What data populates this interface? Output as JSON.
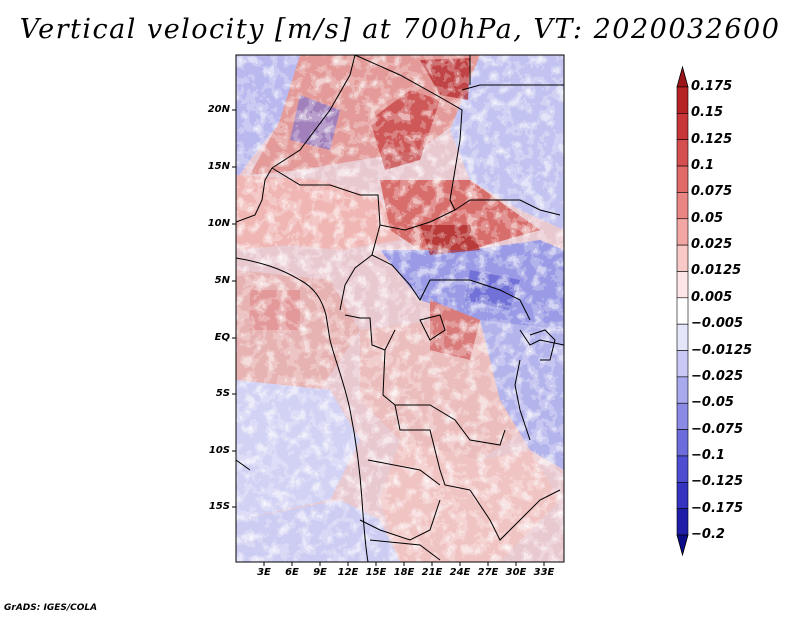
{
  "title": "Vertical velocity [m/s] at 700hPa, VT: 2020032600",
  "credit": "GrADS: IGES/COLA",
  "lat_labels": [
    "20N",
    "15N",
    "10N",
    "5N",
    "EQ",
    "5S",
    "10S",
    "15S"
  ],
  "lon_labels": [
    "3E",
    "6E",
    "9E",
    "12E",
    "15E",
    "18E",
    "21E",
    "24E",
    "27E",
    "30E",
    "33E"
  ],
  "colorbar": {
    "labels": [
      "0.175",
      "0.15",
      "0.125",
      "0.1",
      "0.075",
      "0.05",
      "0.025",
      "0.0125",
      "0.005",
      "−0.005",
      "−0.0125",
      "−0.025",
      "−0.05",
      "−0.075",
      "−0.1",
      "−0.125",
      "−0.175",
      "−0.2"
    ],
    "colors": [
      "#9b1418",
      "#b72225",
      "#c9363a",
      "#d64f50",
      "#e06a68",
      "#e98684",
      "#f2a7a4",
      "#f8c9c7",
      "#fde6e5",
      "#ffffff",
      "#e6e6fb",
      "#c9c9f5",
      "#a9a9ee",
      "#8b8be6",
      "#6c6cdd",
      "#4e4ed2",
      "#3434c0",
      "#1e1ea8",
      "#0c0c88"
    ]
  },
  "map": {
    "lon_range": [
      0,
      35
    ],
    "lat_range": [
      -20,
      24
    ],
    "field": "vertical velocity at 700hPa"
  }
}
